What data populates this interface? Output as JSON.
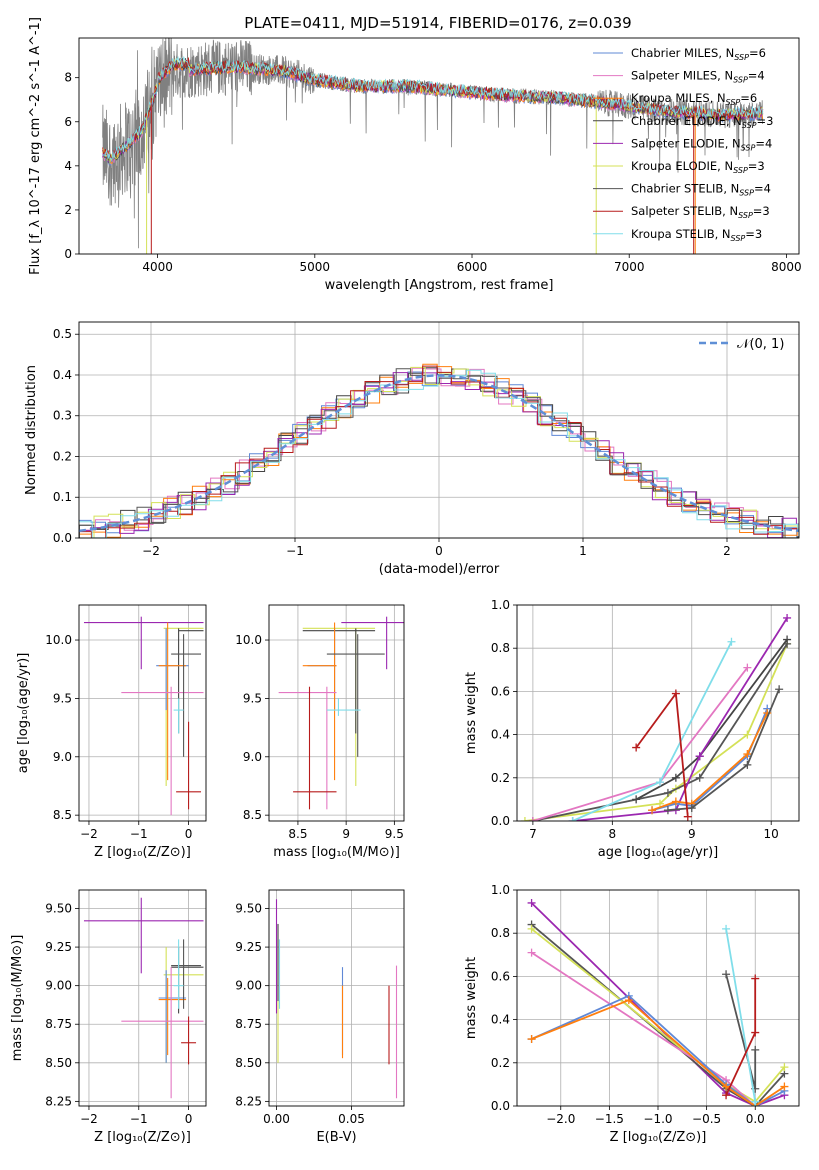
{
  "title": "PLATE=0411, MJD=51914, FIBERID=0176, z=0.039",
  "colors": {
    "chabrier_miles": "#5f88d6",
    "salpeter_miles": "#e377c2",
    "kroupa_miles": "#ff7f0e",
    "chabrier_elodie": "#444444",
    "salpeter_elodie": "#9b27b0",
    "kroupa_elodie": "#d4e157",
    "chabrier_stelib": "#555555",
    "salpeter_stelib": "#b71c1c",
    "kroupa_stelib": "#80deea",
    "data_spectrum": "#808080"
  },
  "chart_data": [
    {
      "panel": "spectrum",
      "type": "line",
      "xlabel": "wavelength [Angstrom, rest frame]",
      "ylabel": "Flux [f_λ 10^-17 erg cm^-2 s^-1 A^-1]",
      "xlim": [
        3500,
        8080
      ],
      "ylim": [
        0,
        9.8
      ],
      "xticks": [
        4000,
        5000,
        6000,
        7000,
        8000
      ],
      "yticks": [
        0,
        2,
        4,
        6,
        8
      ],
      "grid": false,
      "legend_position": "top-right",
      "legend": [
        "Chabrier MILES, N_SSP=6",
        "Salpeter MILES, N_SSP=4",
        "Kroupa MILES, N_SSP=6",
        "Chabrier ELODIE, N_SSP=3",
        "Salpeter ELODIE, N_SSP=4",
        "Kroupa ELODIE, N_SSP=3",
        "Chabrier STELIB, N_SSP=4",
        "Salpeter STELIB, N_SSP=3",
        "Kroupa STELIB, N_SSP=3"
      ],
      "continuum": {
        "x": [
          3650,
          3700,
          3800,
          3900,
          4000,
          4100,
          4300,
          4500,
          4800,
          5000,
          5300,
          5600,
          5900,
          6200,
          6500,
          6800,
          7200,
          7600,
          7850
        ],
        "y": [
          4.6,
          4.3,
          4.9,
          5.6,
          7.6,
          8.3,
          8.4,
          8.5,
          8.3,
          7.9,
          7.6,
          7.6,
          7.4,
          7.2,
          7.1,
          6.9,
          6.5,
          6.3,
          6.4
        ]
      }
    },
    {
      "panel": "residuals",
      "type": "line",
      "xlabel": "(data-model)/error",
      "ylabel": "Normed distribution",
      "xlim": [
        -2.5,
        2.5
      ],
      "ylim": [
        0,
        0.53
      ],
      "xticks": [
        -2,
        -1,
        0,
        1,
        2
      ],
      "yticks": [
        0.0,
        0.1,
        0.2,
        0.3,
        0.4,
        0.5
      ],
      "grid": true,
      "legend_position": "top-right",
      "legend": [
        "𝒩(0, 1)"
      ]
    },
    {
      "panel": "age_vs_Z",
      "type": "scatter",
      "xlabel": "Z [log10(Z/Z⊙)]",
      "ylabel": "age  [log10(age/yr)]",
      "xlim": [
        -2.2,
        0.35
      ],
      "ylim": [
        8.45,
        10.3
      ],
      "xticks": [
        -2,
        -1,
        0
      ],
      "yticks": [
        8.5,
        9.0,
        9.5,
        10.0
      ],
      "grid": true
    },
    {
      "panel": "age_vs_mass",
      "type": "scatter",
      "xlabel": "mass [log10(M/M⊙)]",
      "xlim": [
        8.2,
        9.6
      ],
      "ylim": [
        8.45,
        10.3
      ],
      "xticks": [
        8.5,
        9.0,
        9.5
      ],
      "yticks": [
        8.5,
        9.0,
        9.5,
        10.0
      ],
      "grid": true
    },
    {
      "panel": "massweight_vs_age",
      "type": "line",
      "xlabel": "age  [log10(age/yr)]",
      "ylabel": "mass weight",
      "xlim": [
        6.8,
        10.35
      ],
      "ylim": [
        0,
        1.0
      ],
      "xticks": [
        7,
        8,
        9,
        10
      ],
      "yticks": [
        0.0,
        0.2,
        0.4,
        0.6,
        0.8,
        1.0
      ],
      "grid": true,
      "series": [
        {
          "x": [
            6.9,
            8.6,
            8.8,
            9.7,
            10.2
          ],
          "y": [
            0.0,
            0.08,
            0.15,
            0.4,
            0.82
          ],
          "color": "kroupa_elodie"
        },
        {
          "x": [
            7.0,
            8.7,
            9.1,
            10.2
          ],
          "y": [
            0.0,
            0.13,
            0.2,
            0.82
          ],
          "color": "chabrier_stelib"
        },
        {
          "x": [
            8.3,
            8.8,
            9.1,
            10.2
          ],
          "y": [
            0.1,
            0.2,
            0.3,
            0.84
          ],
          "color": "chabrier_elodie"
        },
        {
          "x": [
            7.5,
            8.8,
            9.1,
            10.2
          ],
          "y": [
            0.0,
            0.05,
            0.3,
            0.94
          ],
          "color": "salpeter_elodie"
        },
        {
          "x": [
            7.0,
            8.6,
            9.7
          ],
          "y": [
            0.0,
            0.18,
            0.71
          ],
          "color": "salpeter_miles"
        },
        {
          "x": [
            7.5,
            8.6,
            9.5
          ],
          "y": [
            0.0,
            0.18,
            0.83
          ],
          "color": "kroupa_stelib"
        },
        {
          "x": [
            8.5,
            8.8,
            9.0,
            9.7,
            9.95
          ],
          "y": [
            0.05,
            0.08,
            0.07,
            0.3,
            0.52
          ],
          "color": "chabrier_miles"
        },
        {
          "x": [
            8.5,
            8.8,
            9.0,
            9.7,
            9.95
          ],
          "y": [
            0.05,
            0.09,
            0.08,
            0.31,
            0.5
          ],
          "color": "kroupa_miles"
        },
        {
          "x": [
            8.7,
            9.0,
            9.7,
            10.1
          ],
          "y": [
            0.05,
            0.06,
            0.26,
            0.61
          ],
          "color": "chabrier_stelib"
        },
        {
          "x": [
            8.3,
            8.8,
            8.95
          ],
          "y": [
            0.34,
            0.59,
            0.02
          ],
          "color": "salpeter_stelib"
        }
      ]
    },
    {
      "panel": "mass_vs_Z",
      "type": "scatter",
      "xlabel": "Z [log10(Z/Z⊙)]",
      "ylabel": "mass [log10(M/M⊙)]",
      "xlim": [
        -2.2,
        0.35
      ],
      "ylim": [
        8.22,
        9.62
      ],
      "xticks": [
        -2,
        -1,
        0
      ],
      "yticks": [
        8.25,
        8.5,
        8.75,
        9.0,
        9.25,
        9.5
      ],
      "grid": true
    },
    {
      "panel": "mass_vs_ebv",
      "type": "scatter",
      "xlabel": "E(B-V)",
      "xlim": [
        -0.005,
        0.085
      ],
      "ylim": [
        8.22,
        9.62
      ],
      "xticks": [
        0.0,
        0.05
      ],
      "yticks": [
        8.25,
        8.5,
        8.75,
        9.0,
        9.25,
        9.5
      ],
      "grid": true,
      "series": [
        {
          "x": 0.0,
          "y": [
            8.82,
            9.56
          ],
          "color": "salpeter_elodie"
        },
        {
          "x": 0.001,
          "y": [
            8.5,
            9.3
          ],
          "color": "kroupa_elodie"
        },
        {
          "x": 0.044,
          "y": [
            8.55,
            9.12
          ],
          "color": "chabrier_miles"
        },
        {
          "x": 0.044,
          "y": [
            8.53,
            9.0
          ],
          "color": "kroupa_miles"
        },
        {
          "x": 0.075,
          "y": [
            8.49,
            9.0
          ],
          "color": "salpeter_stelib"
        },
        {
          "x": 0.08,
          "y": [
            8.27,
            9.13
          ],
          "color": "salpeter_miles"
        }
      ]
    },
    {
      "panel": "massweight_vs_Z",
      "type": "line",
      "xlabel": "Z [log10(Z/Z⊙)]",
      "ylabel": "mass weight",
      "xlim": [
        -2.45,
        0.45
      ],
      "ylim": [
        0,
        1.0
      ],
      "xticks": [
        -2.0,
        -1.5,
        -1.0,
        -0.5,
        0.0
      ],
      "yticks": [
        0.0,
        0.2,
        0.4,
        0.6,
        0.8,
        1.0
      ],
      "grid": true,
      "series": [
        {
          "x": [
            -2.3,
            -0.3,
            0.0,
            0.3
          ],
          "y": [
            0.94,
            0.06,
            0.0,
            0.05
          ],
          "color": "salpeter_elodie"
        },
        {
          "x": [
            -2.3,
            -0.3,
            0.0,
            0.3
          ],
          "y": [
            0.84,
            0.08,
            0.0,
            0.15
          ],
          "color": "chabrier_stelib"
        },
        {
          "x": [
            -2.3,
            -0.3,
            0.0,
            0.3
          ],
          "y": [
            0.82,
            0.1,
            0.02,
            0.18
          ],
          "color": "kroupa_elodie"
        },
        {
          "x": [
            -2.3,
            -0.3,
            0.0
          ],
          "y": [
            0.71,
            0.12,
            0.0
          ],
          "color": "salpeter_miles"
        },
        {
          "x": [
            -2.3,
            -1.3,
            -0.3,
            0.0,
            0.3
          ],
          "y": [
            0.31,
            0.51,
            0.1,
            0.0,
            0.07
          ],
          "color": "chabrier_miles"
        },
        {
          "x": [
            -2.3,
            -1.3,
            -0.3,
            0.0,
            0.3
          ],
          "y": [
            0.31,
            0.49,
            0.09,
            0.0,
            0.09
          ],
          "color": "kroupa_miles"
        },
        {
          "x": [
            -0.3,
            0.0,
            0.0
          ],
          "y": [
            0.61,
            0.08,
            0.26
          ],
          "color": "chabrier_stelib"
        },
        {
          "x": [
            -0.3,
            0.0,
            0.0
          ],
          "y": [
            0.82,
            0.02,
            0.0
          ],
          "color": "kroupa_stelib"
        },
        {
          "x": [
            -0.3,
            0.0,
            0.0
          ],
          "y": [
            0.05,
            0.34,
            0.59
          ],
          "color": "salpeter_stelib"
        }
      ]
    }
  ]
}
